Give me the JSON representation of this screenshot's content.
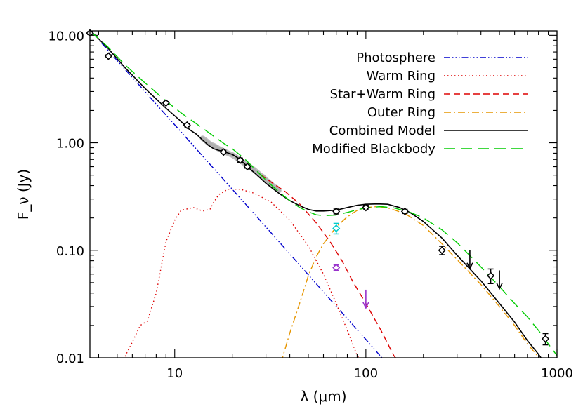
{
  "chart_data": {
    "type": "line",
    "title": "",
    "xlabel": "λ (μm)",
    "ylabel": "F_ν (Jy)",
    "xscale": "log",
    "yscale": "log",
    "xlim": [
      3.6,
      1000
    ],
    "ylim": [
      0.01,
      11
    ],
    "x_tick_labels": [
      "10",
      "100",
      "1000"
    ],
    "y_tick_labels": [
      "10.00",
      "1.00",
      "0.10",
      "0.01"
    ],
    "legend": {
      "placement": "top-right"
    },
    "series": [
      {
        "name": "Photosphere",
        "color": "#0000cc",
        "dash": "dash-dot-dot-dot",
        "points": [
          [
            3.6,
            11.2
          ],
          [
            10,
            1.47
          ],
          [
            30,
            0.165
          ],
          [
            60,
            0.041
          ],
          [
            100,
            0.0148
          ],
          [
            130,
            0.0087
          ]
        ]
      },
      {
        "name": "Warm Ring",
        "color": "#dd0000",
        "dash": "dotted",
        "points": [
          [
            5.3,
            0.009
          ],
          [
            5.6,
            0.011
          ],
          [
            6,
            0.014
          ],
          [
            6.6,
            0.02
          ],
          [
            7.2,
            0.022
          ],
          [
            8,
            0.04
          ],
          [
            9,
            0.12
          ],
          [
            10,
            0.19
          ],
          [
            10.8,
            0.235
          ],
          [
            12.5,
            0.25
          ],
          [
            14,
            0.232
          ],
          [
            15.3,
            0.24
          ],
          [
            16,
            0.28
          ],
          [
            17,
            0.33
          ],
          [
            19,
            0.37
          ],
          [
            22,
            0.37
          ],
          [
            26,
            0.34
          ],
          [
            32,
            0.28
          ],
          [
            40,
            0.19
          ],
          [
            50,
            0.11
          ],
          [
            60,
            0.06
          ],
          [
            70,
            0.032
          ],
          [
            80,
            0.018
          ],
          [
            90,
            0.0105
          ],
          [
            96,
            0.009
          ]
        ]
      },
      {
        "name": "Star+Warm Ring",
        "color": "#dd0000",
        "dash": "dashed",
        "points": [
          [
            28,
            0.51
          ],
          [
            32,
            0.43
          ],
          [
            38,
            0.35
          ],
          [
            45,
            0.27
          ],
          [
            55,
            0.18
          ],
          [
            65,
            0.12
          ],
          [
            75,
            0.08
          ],
          [
            85,
            0.052
          ],
          [
            100,
            0.032
          ],
          [
            120,
            0.018
          ],
          [
            140,
            0.0105
          ],
          [
            150,
            0.009
          ]
        ]
      },
      {
        "name": "Outer Ring",
        "color": "#e69500",
        "dash": "dash-dot",
        "points": [
          [
            36,
            0.009
          ],
          [
            40,
            0.017
          ],
          [
            45,
            0.032
          ],
          [
            50,
            0.058
          ],
          [
            55,
            0.087
          ],
          [
            60,
            0.115
          ],
          [
            70,
            0.165
          ],
          [
            80,
            0.205
          ],
          [
            90,
            0.235
          ],
          [
            100,
            0.25
          ],
          [
            115,
            0.255
          ],
          [
            130,
            0.248
          ],
          [
            160,
            0.22
          ],
          [
            200,
            0.17
          ],
          [
            250,
            0.115
          ],
          [
            300,
            0.082
          ],
          [
            400,
            0.048
          ],
          [
            500,
            0.03
          ],
          [
            600,
            0.02
          ],
          [
            700,
            0.0135
          ],
          [
            800,
            0.0102
          ],
          [
            850,
            0.009
          ]
        ]
      },
      {
        "name": "Combined Model",
        "color": "#000000",
        "dash": "solid",
        "points": [
          [
            3.6,
            11.2
          ],
          [
            4.5,
            7.5
          ],
          [
            5.5,
            5.0
          ],
          [
            7,
            3.2
          ],
          [
            9,
            2.1
          ],
          [
            10.5,
            1.65
          ],
          [
            12,
            1.32
          ],
          [
            13,
            1.2
          ],
          [
            14,
            1.06
          ],
          [
            15,
            0.95
          ],
          [
            16,
            0.88
          ],
          [
            17,
            0.85
          ],
          [
            18,
            0.83
          ],
          [
            20,
            0.78
          ],
          [
            22,
            0.7
          ],
          [
            24,
            0.6
          ],
          [
            27,
            0.5
          ],
          [
            30,
            0.42
          ],
          [
            35,
            0.34
          ],
          [
            40,
            0.29
          ],
          [
            45,
            0.26
          ],
          [
            50,
            0.24
          ],
          [
            55,
            0.232
          ],
          [
            60,
            0.232
          ],
          [
            70,
            0.236
          ],
          [
            80,
            0.25
          ],
          [
            90,
            0.262
          ],
          [
            100,
            0.268
          ],
          [
            115,
            0.27
          ],
          [
            130,
            0.268
          ],
          [
            150,
            0.25
          ],
          [
            170,
            0.225
          ],
          [
            200,
            0.185
          ],
          [
            250,
            0.13
          ],
          [
            300,
            0.09
          ],
          [
            400,
            0.052
          ],
          [
            500,
            0.032
          ],
          [
            600,
            0.0215
          ],
          [
            700,
            0.0145
          ],
          [
            800,
            0.0108
          ],
          [
            860,
            0.009
          ]
        ]
      },
      {
        "name": "Modified Blackbody",
        "color": "#00cc00",
        "dash": "long-dash",
        "points": [
          [
            3.6,
            11
          ],
          [
            4.5,
            7.7
          ],
          [
            5.5,
            5.3
          ],
          [
            7,
            3.6
          ],
          [
            9,
            2.45
          ],
          [
            11,
            1.85
          ],
          [
            13,
            1.5
          ],
          [
            15,
            1.25
          ],
          [
            18,
            0.99
          ],
          [
            20,
            0.88
          ],
          [
            23,
            0.72
          ],
          [
            26,
            0.58
          ],
          [
            30,
            0.45
          ],
          [
            35,
            0.35
          ],
          [
            40,
            0.29
          ],
          [
            45,
            0.25
          ],
          [
            50,
            0.228
          ],
          [
            55,
            0.214
          ],
          [
            60,
            0.21
          ],
          [
            70,
            0.213
          ],
          [
            80,
            0.225
          ],
          [
            90,
            0.238
          ],
          [
            100,
            0.248
          ],
          [
            120,
            0.255
          ],
          [
            140,
            0.248
          ],
          [
            170,
            0.226
          ],
          [
            200,
            0.2
          ],
          [
            250,
            0.155
          ],
          [
            300,
            0.118
          ],
          [
            400,
            0.07
          ],
          [
            500,
            0.046
          ],
          [
            600,
            0.032
          ],
          [
            700,
            0.024
          ],
          [
            800,
            0.018
          ],
          [
            900,
            0.0135
          ],
          [
            1000,
            0.0105
          ]
        ]
      }
    ],
    "observations": [
      {
        "x": 3.6,
        "y": 10.5,
        "err": 0.3,
        "color": "#000000",
        "marker": "diamond"
      },
      {
        "x": 4.5,
        "y": 6.4,
        "err": 0.2,
        "color": "#000000",
        "marker": "diamond"
      },
      {
        "x": 9,
        "y": 2.35,
        "err": 0.07,
        "color": "#000000",
        "marker": "diamond"
      },
      {
        "x": 11.6,
        "y": 1.46,
        "err": 0.05,
        "color": "#000000",
        "marker": "diamond"
      },
      {
        "x": 18,
        "y": 0.82,
        "err": 0.03,
        "color": "#000000",
        "marker": "diamond"
      },
      {
        "x": 22,
        "y": 0.69,
        "err": 0.03,
        "color": "#000000",
        "marker": "diamond"
      },
      {
        "x": 24,
        "y": 0.6,
        "err": 0.02,
        "color": "#000000",
        "marker": "diamond"
      },
      {
        "x": 70,
        "y": 0.23,
        "err": 0.012,
        "color": "#000000",
        "marker": "diamond"
      },
      {
        "x": 100,
        "y": 0.25,
        "err": 0.012,
        "color": "#000000",
        "marker": "diamond"
      },
      {
        "x": 160,
        "y": 0.23,
        "err": 0.01,
        "color": "#000000",
        "marker": "diamond"
      },
      {
        "x": 250,
        "y": 0.1,
        "err": 0.009,
        "color": "#000000",
        "marker": "diamond"
      },
      {
        "x": 450,
        "y": 0.058,
        "err": 0.009,
        "color": "#000000",
        "marker": "diamond"
      },
      {
        "x": 870,
        "y": 0.015,
        "err": 0.0018,
        "color": "#000000",
        "marker": "diamond"
      },
      {
        "x": 70,
        "y": 0.16,
        "err": 0.018,
        "color": "#00cccc",
        "marker": "diamond"
      },
      {
        "x": 70,
        "y": 0.069,
        "err": 0.004,
        "color": "#9933cc",
        "marker": "diamond"
      }
    ],
    "upper_limits": [
      {
        "x": 350,
        "y": 0.1,
        "color": "#000000"
      },
      {
        "x": 500,
        "y": 0.065,
        "color": "#000000"
      },
      {
        "x": 100,
        "y": 0.043,
        "color": "#9933cc"
      }
    ],
    "spectrum": {
      "color": "#b0b0b0",
      "points": [
        [
          14,
          1.1
        ],
        [
          14.5,
          1.05
        ],
        [
          15,
          1.0
        ],
        [
          15.5,
          0.96
        ],
        [
          16,
          0.94
        ],
        [
          16.5,
          0.91
        ],
        [
          17,
          0.88
        ],
        [
          17.5,
          0.86
        ],
        [
          18,
          0.84
        ],
        [
          19,
          0.8
        ],
        [
          20,
          0.77
        ],
        [
          21,
          0.73
        ],
        [
          22,
          0.69
        ],
        [
          23,
          0.65
        ],
        [
          24,
          0.62
        ],
        [
          25,
          0.59
        ],
        [
          26,
          0.56
        ],
        [
          27,
          0.53
        ],
        [
          28,
          0.5
        ],
        [
          29,
          0.48
        ],
        [
          30,
          0.45
        ],
        [
          31,
          0.43
        ],
        [
          32,
          0.41
        ],
        [
          33,
          0.39
        ],
        [
          34,
          0.38
        ],
        [
          35,
          0.36
        ]
      ]
    }
  }
}
